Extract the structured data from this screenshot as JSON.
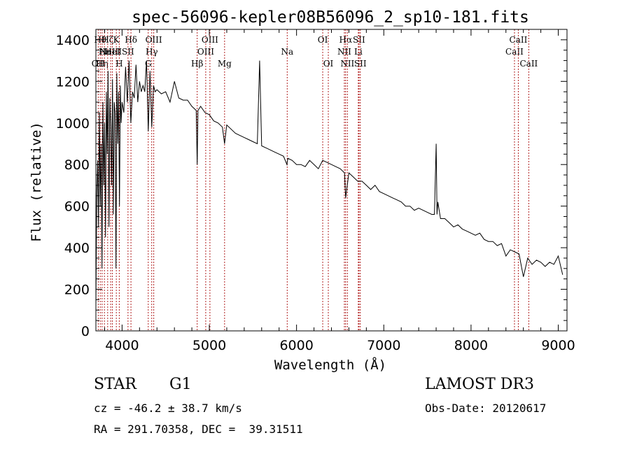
{
  "chart_data": {
    "type": "line",
    "title": "spec-56096-kepler08B56096_2_sp10-181.fits",
    "xlabel": "Wavelength (Å)",
    "ylabel": "Flux (relative)",
    "xlim": [
      3700,
      9100
    ],
    "ylim": [
      0,
      1450
    ],
    "x_ticks": [
      4000,
      5000,
      6000,
      7000,
      8000,
      9000
    ],
    "y_ticks": [
      0,
      200,
      400,
      600,
      800,
      1000,
      1200,
      1400
    ],
    "series": [
      {
        "name": "flux",
        "x": [
          3700,
          3710,
          3720,
          3730,
          3740,
          3750,
          3760,
          3770,
          3780,
          3790,
          3800,
          3810,
          3820,
          3830,
          3840,
          3850,
          3860,
          3870,
          3880,
          3890,
          3900,
          3910,
          3920,
          3930,
          3940,
          3950,
          3960,
          3970,
          3980,
          3990,
          4000,
          4020,
          4040,
          4060,
          4080,
          4100,
          4120,
          4140,
          4160,
          4180,
          4200,
          4220,
          4240,
          4260,
          4280,
          4300,
          4320,
          4340,
          4360,
          4380,
          4400,
          4450,
          4500,
          4550,
          4600,
          4650,
          4700,
          4750,
          4800,
          4850,
          4861,
          4870,
          4900,
          4950,
          5000,
          5050,
          5100,
          5150,
          5175,
          5200,
          5250,
          5300,
          5350,
          5400,
          5450,
          5500,
          5550,
          5577,
          5600,
          5650,
          5700,
          5750,
          5800,
          5850,
          5890,
          5900,
          5950,
          6000,
          6050,
          6100,
          6150,
          6200,
          6250,
          6300,
          6350,
          6400,
          6450,
          6500,
          6550,
          6563,
          6600,
          6650,
          6700,
          6750,
          6800,
          6850,
          6900,
          6950,
          7000,
          7050,
          7100,
          7150,
          7200,
          7250,
          7300,
          7350,
          7400,
          7450,
          7500,
          7550,
          7580,
          7600,
          7610,
          7620,
          7650,
          7700,
          7750,
          7800,
          7850,
          7900,
          7950,
          8000,
          8050,
          8100,
          8150,
          8200,
          8250,
          8300,
          8350,
          8400,
          8450,
          8500,
          8550,
          8600,
          8650,
          8700,
          8750,
          8800,
          8850,
          8900,
          8950,
          9000,
          9050
        ],
        "y": [
          120,
          650,
          820,
          500,
          1050,
          600,
          900,
          300,
          1100,
          700,
          1000,
          450,
          1150,
          850,
          1250,
          500,
          1120,
          980,
          700,
          1210,
          560,
          1100,
          1050,
          300,
          1240,
          900,
          1150,
          600,
          1180,
          1000,
          1100,
          1050,
          1270,
          1100,
          1300,
          1000,
          1150,
          1120,
          1280,
          1100,
          1200,
          1150,
          1180,
          1150,
          1300,
          960,
          1250,
          980,
          1180,
          1150,
          1160,
          1140,
          1150,
          1100,
          1200,
          1120,
          1110,
          1110,
          1080,
          1060,
          800,
          1060,
          1080,
          1050,
          1040,
          1010,
          1000,
          980,
          900,
          990,
          970,
          950,
          940,
          930,
          920,
          910,
          900,
          1300,
          890,
          880,
          870,
          860,
          850,
          840,
          800,
          830,
          820,
          800,
          800,
          790,
          820,
          800,
          780,
          820,
          810,
          800,
          790,
          780,
          760,
          640,
          760,
          740,
          720,
          720,
          700,
          680,
          700,
          670,
          660,
          650,
          640,
          630,
          620,
          600,
          600,
          580,
          590,
          580,
          570,
          560,
          560,
          900,
          560,
          620,
          540,
          540,
          520,
          500,
          510,
          490,
          480,
          470,
          460,
          470,
          440,
          430,
          430,
          410,
          420,
          360,
          390,
          380,
          370,
          260,
          350,
          320,
          340,
          330,
          310,
          330,
          320,
          360,
          270
        ]
      }
    ],
    "lines": [
      {
        "x": 3727,
        "label": "OII",
        "row": 3
      },
      {
        "x": 3750,
        "label": "Hθ",
        "row": 1
      },
      {
        "x": 3771,
        "label": "Hη",
        "row": 3
      },
      {
        "x": 3798,
        "label": "Hε",
        "row": 2
      },
      {
        "x": 3835,
        "label": "Hζ",
        "row": 1
      },
      {
        "x": 3869,
        "label": "NeIII",
        "row": 2
      },
      {
        "x": 3889,
        "label": "HeI",
        "row": 2
      },
      {
        "x": 3934,
        "label": "K",
        "row": 1
      },
      {
        "x": 3968,
        "label": "H",
        "row": 3
      },
      {
        "x": 4068,
        "label": "SII",
        "row": 2
      },
      {
        "x": 4102,
        "label": "Hδ",
        "row": 1
      },
      {
        "x": 4300,
        "label": "G",
        "row": 3
      },
      {
        "x": 4340,
        "label": "Hγ",
        "row": 2
      },
      {
        "x": 4363,
        "label": "OIII",
        "row": 1
      },
      {
        "x": 4861,
        "label": "Hβ",
        "row": 3
      },
      {
        "x": 4959,
        "label": "OIII",
        "row": 2
      },
      {
        "x": 5007,
        "label": "OIII",
        "row": 1
      },
      {
        "x": 5175,
        "label": "Mg",
        "row": 3
      },
      {
        "x": 5893,
        "label": "Na",
        "row": 2
      },
      {
        "x": 6300,
        "label": "OI",
        "row": 1
      },
      {
        "x": 6364,
        "label": "OI",
        "row": 3
      },
      {
        "x": 6548,
        "label": "NII",
        "row": 2
      },
      {
        "x": 6563,
        "label": "Hα",
        "row": 1
      },
      {
        "x": 6583,
        "label": "NII",
        "row": 3
      },
      {
        "x": 6708,
        "label": "Li",
        "row": 2
      },
      {
        "x": 6716,
        "label": "SII",
        "row": 1
      },
      {
        "x": 6731,
        "label": "SII",
        "row": 3
      },
      {
        "x": 8498,
        "label": "CaII",
        "row": 2
      },
      {
        "x": 8542,
        "label": "CaII",
        "row": 1
      },
      {
        "x": 8662,
        "label": "CaII",
        "row": 3
      }
    ]
  },
  "info": {
    "class": "STAR",
    "subclass": "G1",
    "survey": "LAMOST DR3",
    "cz": "cz = -46.2 ± 38.7 km/s",
    "obs_date": "Obs-Date: 20120617",
    "coords": "RA = 291.70358, DEC =  39.31511"
  }
}
